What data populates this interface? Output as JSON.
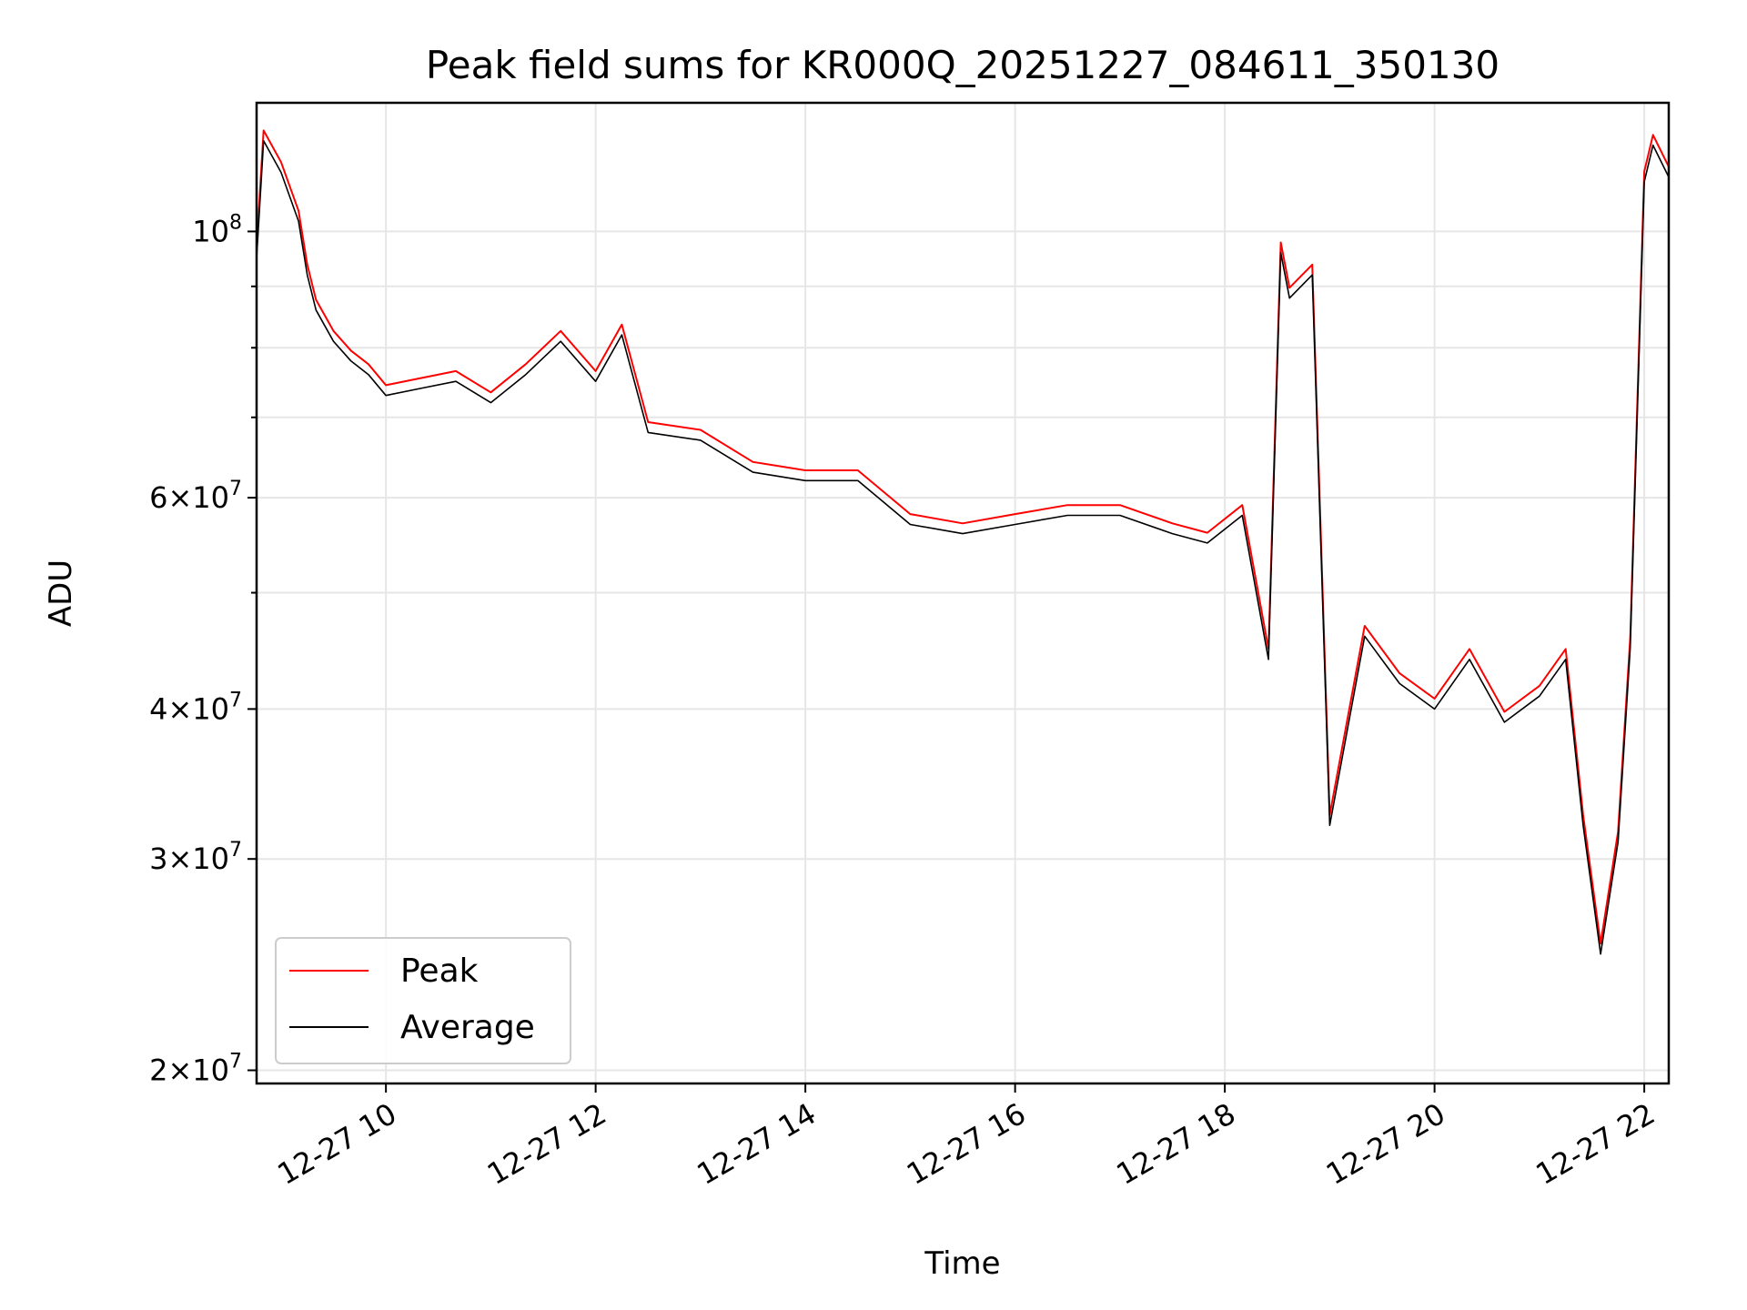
{
  "chart_data": {
    "type": "line",
    "title": "Peak field sums for KR000Q_20251227_084611_350130",
    "xlabel": "Time",
    "ylabel": "ADU",
    "yscale": "log",
    "ylim": [
      19500000,
      128000000
    ],
    "xlim": [
      "2025-12-27T08:46",
      "2025-12-27T22:14"
    ],
    "x_ticks": [
      {
        "t": "2025-12-27T10:00",
        "label": "12-27 10"
      },
      {
        "t": "2025-12-27T12:00",
        "label": "12-27 12"
      },
      {
        "t": "2025-12-27T14:00",
        "label": "12-27 14"
      },
      {
        "t": "2025-12-27T16:00",
        "label": "12-27 16"
      },
      {
        "t": "2025-12-27T18:00",
        "label": "12-27 18"
      },
      {
        "t": "2025-12-27T20:00",
        "label": "12-27 20"
      },
      {
        "t": "2025-12-27T22:00",
        "label": "12-27 22"
      }
    ],
    "y_ticks": [
      {
        "value": 20000000,
        "base": "2×10",
        "exp": "7"
      },
      {
        "value": 30000000,
        "base": "3×10",
        "exp": "7"
      },
      {
        "value": 40000000,
        "base": "4×10",
        "exp": "7"
      },
      {
        "value": 60000000,
        "base": "6×10",
        "exp": "7"
      },
      {
        "value": 100000000,
        "base": "10",
        "exp": "8"
      }
    ],
    "y_minor_ticks": [
      50000000,
      70000000,
      80000000,
      90000000
    ],
    "grid": true,
    "legend": {
      "position": "lower-left"
    },
    "series": [
      {
        "name": "Peak",
        "color": "#ff0000"
      },
      {
        "name": "Average",
        "color": "#000000"
      }
    ],
    "x": [
      "2025-12-27T08:46",
      "2025-12-27T08:50",
      "2025-12-27T09:00",
      "2025-12-27T09:10",
      "2025-12-27T09:15",
      "2025-12-27T09:20",
      "2025-12-27T09:30",
      "2025-12-27T09:40",
      "2025-12-27T09:50",
      "2025-12-27T10:00",
      "2025-12-27T10:20",
      "2025-12-27T10:40",
      "2025-12-27T11:00",
      "2025-12-27T11:20",
      "2025-12-27T11:40",
      "2025-12-27T12:00",
      "2025-12-27T12:15",
      "2025-12-27T12:30",
      "2025-12-27T13:00",
      "2025-12-27T13:30",
      "2025-12-27T14:00",
      "2025-12-27T14:30",
      "2025-12-27T15:00",
      "2025-12-27T15:30",
      "2025-12-27T16:00",
      "2025-12-27T16:30",
      "2025-12-27T17:00",
      "2025-12-27T17:30",
      "2025-12-27T17:50",
      "2025-12-27T18:10",
      "2025-12-27T18:25",
      "2025-12-27T18:32",
      "2025-12-27T18:37",
      "2025-12-27T18:50",
      "2025-12-27T19:00",
      "2025-12-27T19:20",
      "2025-12-27T19:40",
      "2025-12-27T20:00",
      "2025-12-27T20:20",
      "2025-12-27T20:40",
      "2025-12-27T21:00",
      "2025-12-27T21:15",
      "2025-12-27T21:25",
      "2025-12-27T21:35",
      "2025-12-27T21:45",
      "2025-12-27T21:52",
      "2025-12-27T22:00",
      "2025-12-27T22:05",
      "2025-12-27T22:14"
    ],
    "average": [
      95000000,
      119000000,
      112000000,
      102000000,
      92000000,
      86000000,
      81000000,
      78000000,
      76000000,
      73000000,
      74000000,
      75000000,
      72000000,
      76000000,
      81000000,
      75000000,
      82000000,
      68000000,
      67000000,
      63000000,
      62000000,
      62000000,
      57000000,
      56000000,
      57000000,
      58000000,
      58000000,
      56000000,
      55000000,
      58000000,
      44000000,
      96000000,
      88000000,
      92000000,
      32000000,
      46000000,
      42000000,
      40000000,
      44000000,
      39000000,
      41000000,
      44000000,
      32000000,
      25000000,
      31000000,
      45000000,
      110000000,
      118000000,
      111000000
    ]
  }
}
